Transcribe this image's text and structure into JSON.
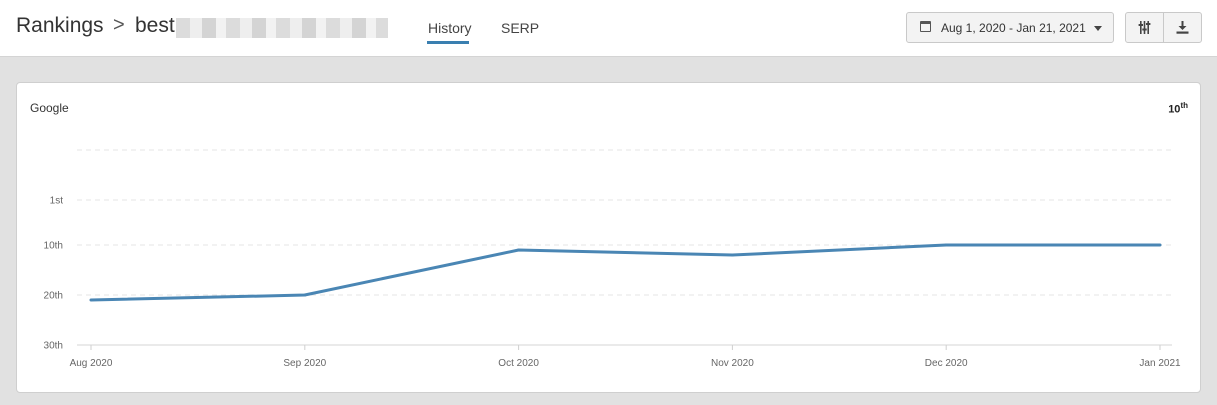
{
  "header": {
    "title": "Rankings",
    "separator": ">",
    "keyword": "best"
  },
  "tabs": [
    {
      "label": "History",
      "active": true
    },
    {
      "label": "SERP",
      "active": false
    }
  ],
  "date_range": {
    "label": "Aug 1, 2020 - Jan 21, 2021"
  },
  "toolbar": {
    "settings_icon": "sliders-icon",
    "download_icon": "download-icon"
  },
  "panel": {
    "engine": "Google",
    "current_rank": "10",
    "current_rank_suffix": "th"
  },
  "colors": {
    "line": "#4a86b4",
    "accent": "#3a7fb0"
  },
  "chart_data": {
    "type": "line",
    "x": [
      "Aug 2020",
      "Sep 2020",
      "Oct 2020",
      "Nov 2020",
      "Dec 2020",
      "Jan 2021"
    ],
    "y_ticks": [
      "1st",
      "10th",
      "20th",
      "30th"
    ],
    "y_tick_values": [
      1,
      10,
      20,
      30
    ],
    "y_reversed": true,
    "grid": true,
    "series": [
      {
        "values": [
          21,
          20,
          11,
          12,
          10,
          10
        ]
      }
    ]
  }
}
